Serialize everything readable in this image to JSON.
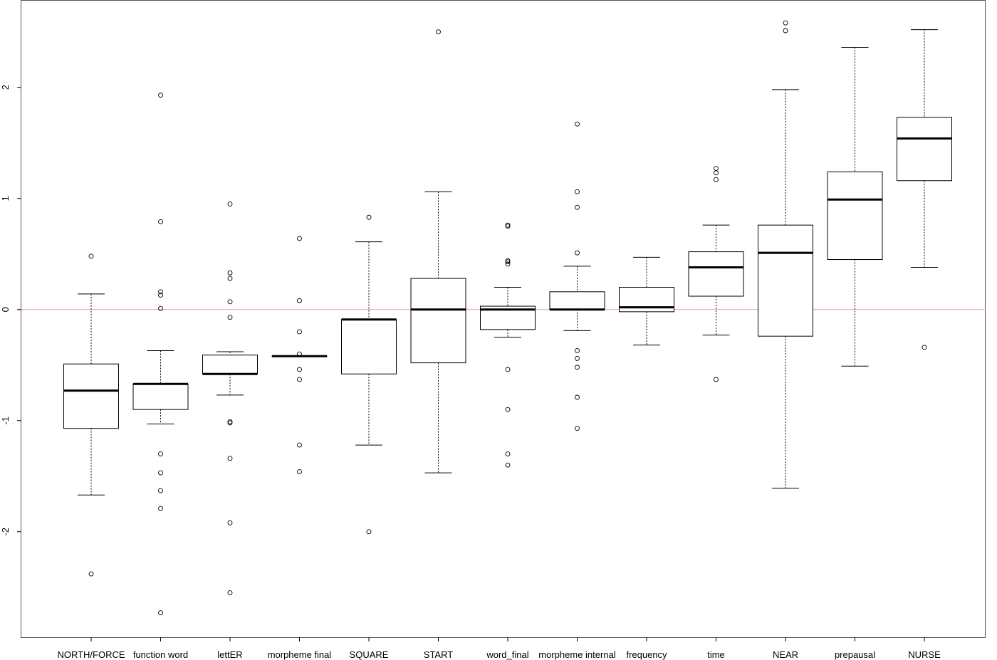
{
  "chart_data": {
    "type": "boxplot",
    "title": "",
    "xlabel": "",
    "ylabel": "",
    "ylim": [
      -2.95,
      2.78
    ],
    "yticks": [
      -2,
      -1,
      0,
      1,
      2
    ],
    "ytick_labels": [
      "-2",
      "-1",
      "0",
      "1",
      "2"
    ],
    "reference_line": {
      "y": 0,
      "color": "#e8a090"
    },
    "categories": [
      "NORTH/FORCE",
      "function word",
      "lettER",
      "morpheme final",
      "SQUARE",
      "START",
      "word_final",
      "morpheme internal",
      "frequency",
      "time",
      "NEAR",
      "prepausal",
      "NURSE"
    ],
    "boxes": [
      {
        "whisker_low": -1.67,
        "q1": -1.07,
        "median": -0.73,
        "q3": -0.49,
        "whisker_high": 0.14,
        "outliers": [
          0.48,
          -2.38
        ]
      },
      {
        "whisker_low": -1.03,
        "q1": -0.9,
        "median": -0.67,
        "q3": -0.67,
        "whisker_high": -0.37,
        "outliers": [
          1.93,
          0.79,
          0.16,
          0.13,
          0.01,
          -1.3,
          -1.47,
          -1.63,
          -1.79,
          -2.73
        ]
      },
      {
        "whisker_low": -0.77,
        "q1": -0.58,
        "median": -0.58,
        "q3": -0.41,
        "whisker_high": -0.38,
        "outliers": [
          0.95,
          0.33,
          0.28,
          0.07,
          -0.07,
          -1.01,
          -1.02,
          -1.34,
          -1.92,
          -2.55
        ]
      },
      {
        "whisker_low": -0.42,
        "q1": -0.42,
        "median": -0.42,
        "q3": -0.42,
        "whisker_high": -0.42,
        "outliers": [
          0.64,
          0.08,
          -0.2,
          -0.4,
          -0.54,
          -0.63,
          -1.22,
          -1.46
        ]
      },
      {
        "whisker_low": -1.22,
        "q1": -0.58,
        "median": -0.09,
        "q3": -0.09,
        "whisker_high": 0.61,
        "outliers": [
          0.83,
          -2.0
        ]
      },
      {
        "whisker_low": -1.47,
        "q1": -0.48,
        "median": 0.0,
        "q3": 0.28,
        "whisker_high": 1.06,
        "outliers": [
          2.5
        ]
      },
      {
        "whisker_low": -0.25,
        "q1": -0.18,
        "median": 0.0,
        "q3": 0.03,
        "whisker_high": 0.2,
        "outliers": [
          0.76,
          0.75,
          0.44,
          0.43,
          0.41,
          -0.54,
          -0.9,
          -1.3,
          -1.4
        ]
      },
      {
        "whisker_low": -0.19,
        "q1": 0.0,
        "median": 0.0,
        "q3": 0.16,
        "whisker_high": 0.39,
        "outliers": [
          1.67,
          1.06,
          0.92,
          0.51,
          -0.37,
          -0.44,
          -0.52,
          -0.79,
          -1.07
        ]
      },
      {
        "whisker_low": -0.32,
        "q1": -0.02,
        "median": 0.02,
        "q3": 0.2,
        "whisker_high": 0.47,
        "outliers": []
      },
      {
        "whisker_low": -0.23,
        "q1": 0.12,
        "median": 0.38,
        "q3": 0.52,
        "whisker_high": 0.76,
        "outliers": [
          1.27,
          1.23,
          1.17,
          -0.63
        ]
      },
      {
        "whisker_low": -1.61,
        "q1": -0.24,
        "median": 0.51,
        "q3": 0.76,
        "whisker_high": 1.98,
        "outliers": [
          2.58,
          2.51
        ]
      },
      {
        "whisker_low": -0.51,
        "q1": 0.45,
        "median": 0.99,
        "q3": 1.24,
        "whisker_high": 2.36,
        "outliers": []
      },
      {
        "whisker_low": 0.38,
        "q1": 1.16,
        "median": 1.54,
        "q3": 1.73,
        "whisker_high": 2.52,
        "outliers": [
          -0.34
        ]
      }
    ],
    "grid": false,
    "legend": "none"
  }
}
